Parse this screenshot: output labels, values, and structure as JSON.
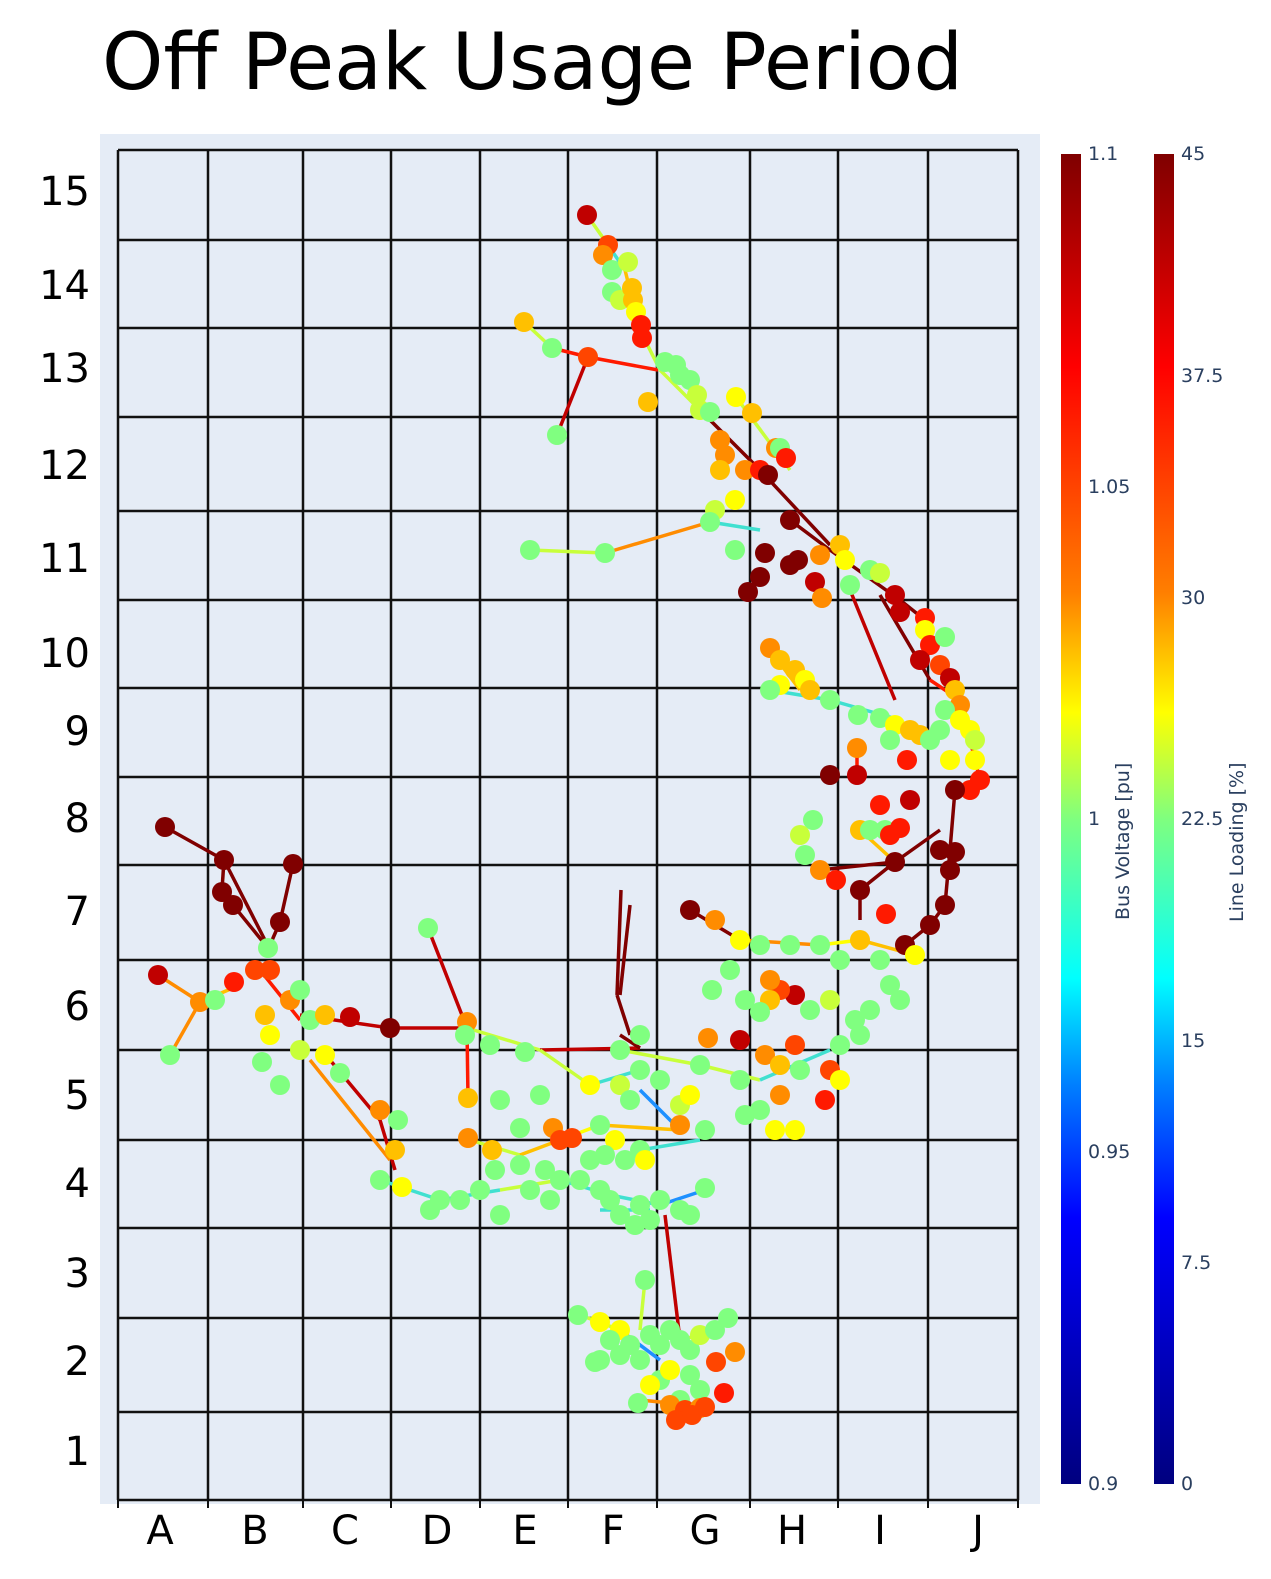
{
  "title": "Off Peak Usage Period",
  "chart_data": {
    "type": "scatter",
    "subtype": "network-graph on grid",
    "title": "Off Peak Usage Period",
    "xlabel": "",
    "ylabel": "",
    "x_tick_labels": [
      "A",
      "B",
      "C",
      "D",
      "E",
      "F",
      "G",
      "H",
      "I",
      "J"
    ],
    "y_tick_labels": [
      "1",
      "2",
      "3",
      "4",
      "5",
      "6",
      "7",
      "8",
      "9",
      "10",
      "11",
      "12",
      "13",
      "14",
      "15"
    ],
    "grid": true,
    "grid_color": "#000000",
    "plot_bg": "#e5ecf6",
    "colorbars": [
      {
        "name": "bus-voltage",
        "title": "Bus Voltage [pu]",
        "range": [
          0.9,
          1.1
        ],
        "ticks": [
          "1.1",
          "1.05",
          "1",
          "0.95",
          "0.9"
        ],
        "colorscale": "Jet"
      },
      {
        "name": "line-loading",
        "title": "Line Loading [%]",
        "range": [
          0,
          45
        ],
        "ticks": [
          "45",
          "37.5",
          "30",
          "22.5",
          "15",
          "7.5",
          "0"
        ],
        "colorscale": "Jet"
      }
    ],
    "series": [
      {
        "name": "buses",
        "marker": "circle",
        "color_by": "Bus Voltage [pu]",
        "approx_range": [
          0.99,
          1.1
        ]
      },
      {
        "name": "lines",
        "marker": "line",
        "color_by": "Line Loading [%]",
        "approx_range": [
          10,
          45
        ]
      }
    ],
    "regions": [
      {
        "grid": "A-B 6-8",
        "description": "dark red radial feeder lines (~45%), nodes ~1.1 pu"
      },
      {
        "grid": "F-G 13-15",
        "description": "northern branch, red/orange/green nodes"
      },
      {
        "grid": "G-J 5-12",
        "description": "eastern arc, mixed high voltage nodes and dark red lines"
      },
      {
        "grid": "B-G 4-6",
        "description": "central/southern mesh, mostly green/yellow nodes"
      },
      {
        "grid": "F-G 1-3",
        "description": "southern cluster, green and orange nodes"
      }
    ]
  },
  "colorbar_bus": {
    "title": "Bus Voltage [pu]",
    "ticks": [
      "1.1",
      "1.05",
      "1",
      "0.95",
      "0.9"
    ]
  },
  "colorbar_line": {
    "title": "Line Loading [%]",
    "ticks": [
      "45",
      "37.5",
      "30",
      "22.5",
      "15",
      "7.5",
      "0"
    ]
  }
}
